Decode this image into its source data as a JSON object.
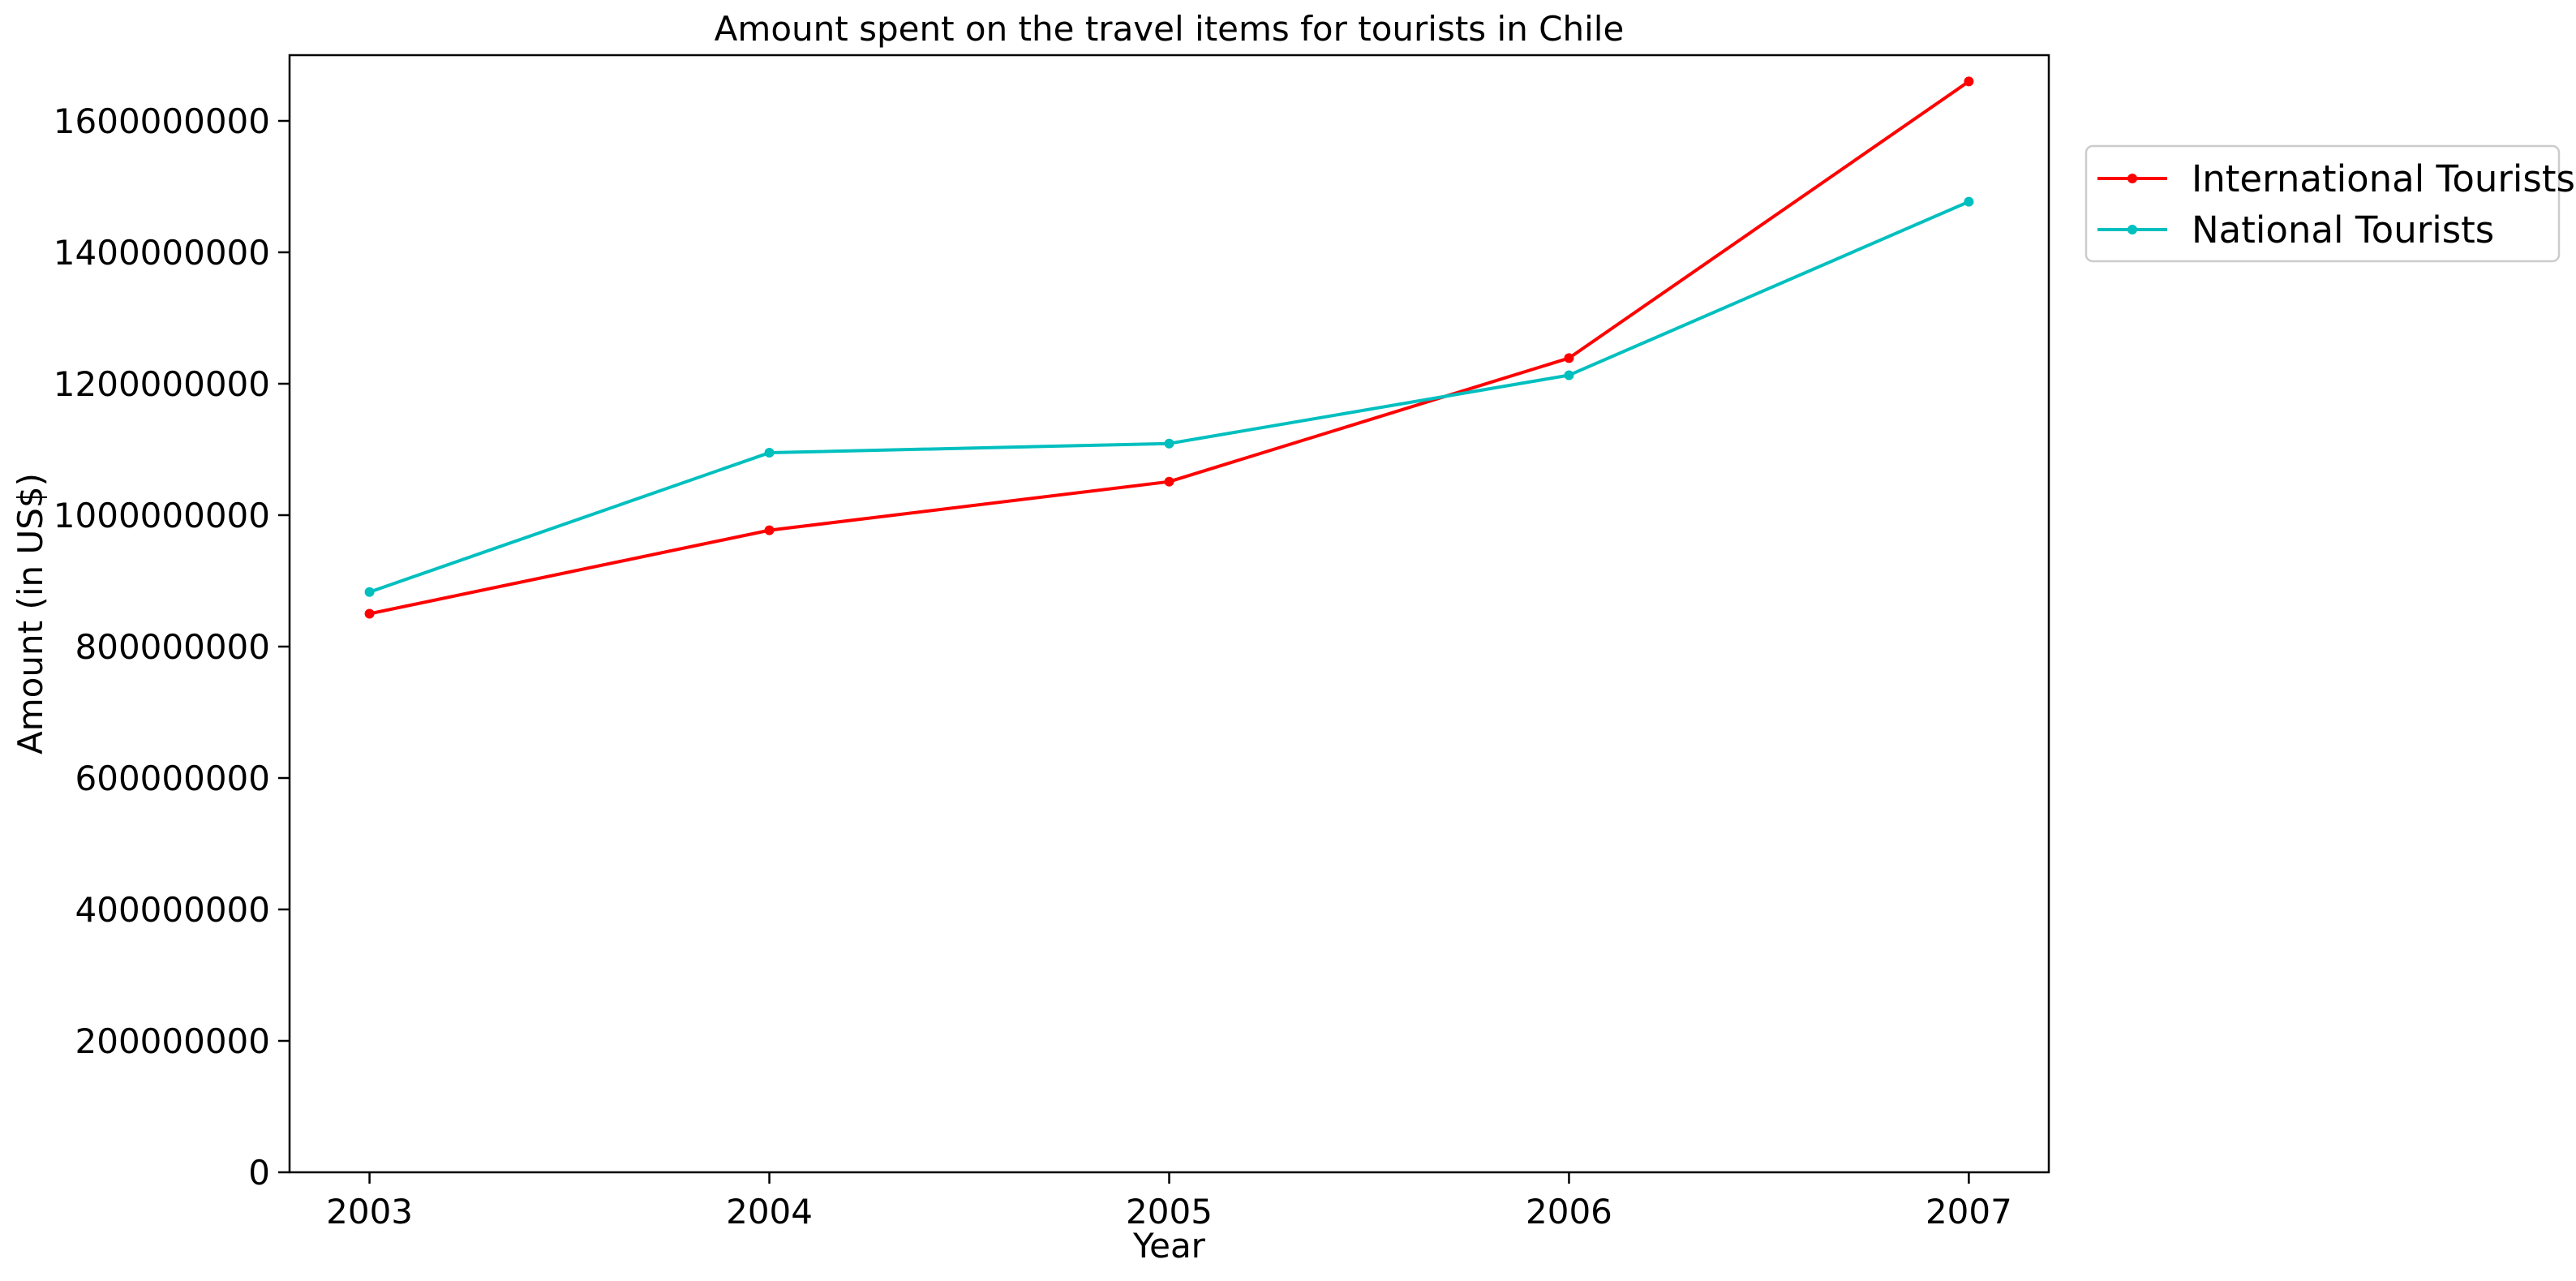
{
  "chart_data": {
    "type": "line",
    "title": "Amount spent on the travel items for tourists in Chile",
    "xlabel": "Year",
    "ylabel": "Amount (in US$)",
    "x": [
      2003,
      2004,
      2005,
      2006,
      2007
    ],
    "x_tick_labels": [
      "2003",
      "2004",
      "2005",
      "2006",
      "2007"
    ],
    "ylim": [
      0,
      1700000000
    ],
    "y_ticks": [
      0,
      200000000,
      400000000,
      600000000,
      800000000,
      1000000000,
      1200000000,
      1400000000,
      1600000000
    ],
    "y_tick_labels": [
      "0",
      "200000000",
      "400000000",
      "600000000",
      "800000000",
      "1000000000",
      "1200000000",
      "1400000000",
      "1600000000"
    ],
    "grid": false,
    "legend_position": "outside-top-right",
    "series": [
      {
        "name": "International Tourists",
        "color": "#ff0000",
        "values": [
          850000000,
          977000000,
          1051000000,
          1239000000,
          1660000000
        ]
      },
      {
        "name": "National Tourists",
        "color": "#00bfbf",
        "values": [
          883000000,
          1095000000,
          1109000000,
          1213000000,
          1477000000
        ]
      }
    ]
  }
}
